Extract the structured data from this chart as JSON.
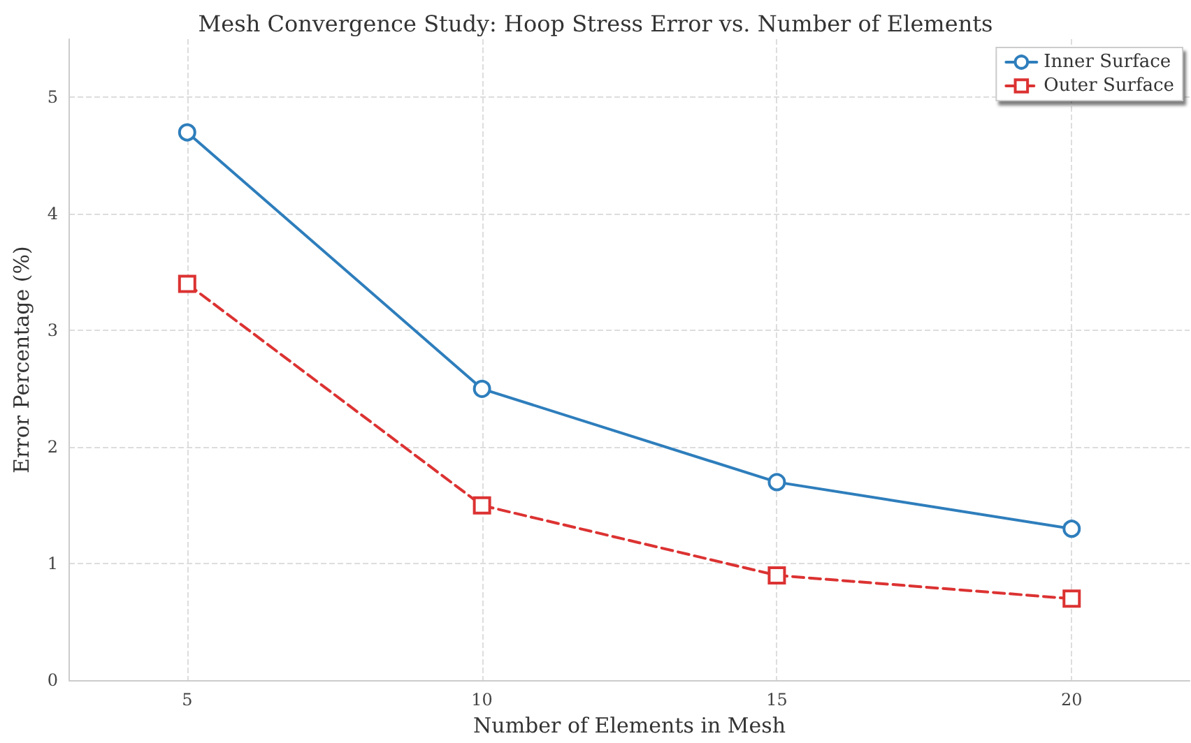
{
  "chart_data": {
    "type": "line",
    "title": "Mesh Convergence Study: Hoop Stress Error vs. Number of Elements",
    "xlabel": "Number of Elements in Mesh",
    "ylabel": "Error Percentage (%)",
    "x": [
      5,
      10,
      15,
      20
    ],
    "series": [
      {
        "name": "Inner Surface",
        "color": "#2e7ebc",
        "values": [
          4.7,
          2.5,
          1.7,
          1.3
        ],
        "marker": "circle",
        "line_style": "solid"
      },
      {
        "name": "Outer Surface",
        "color": "#dc3232",
        "values": [
          3.4,
          1.5,
          0.9,
          0.7
        ],
        "marker": "square",
        "line_style": "dashed"
      }
    ],
    "xlim": [
      3,
      22
    ],
    "xticks": [
      5,
      10,
      15,
      20
    ],
    "ylim": [
      0,
      5.5
    ],
    "yticks": [
      0,
      1,
      2,
      3,
      4,
      5
    ],
    "grid": true,
    "legend": "top right"
  }
}
